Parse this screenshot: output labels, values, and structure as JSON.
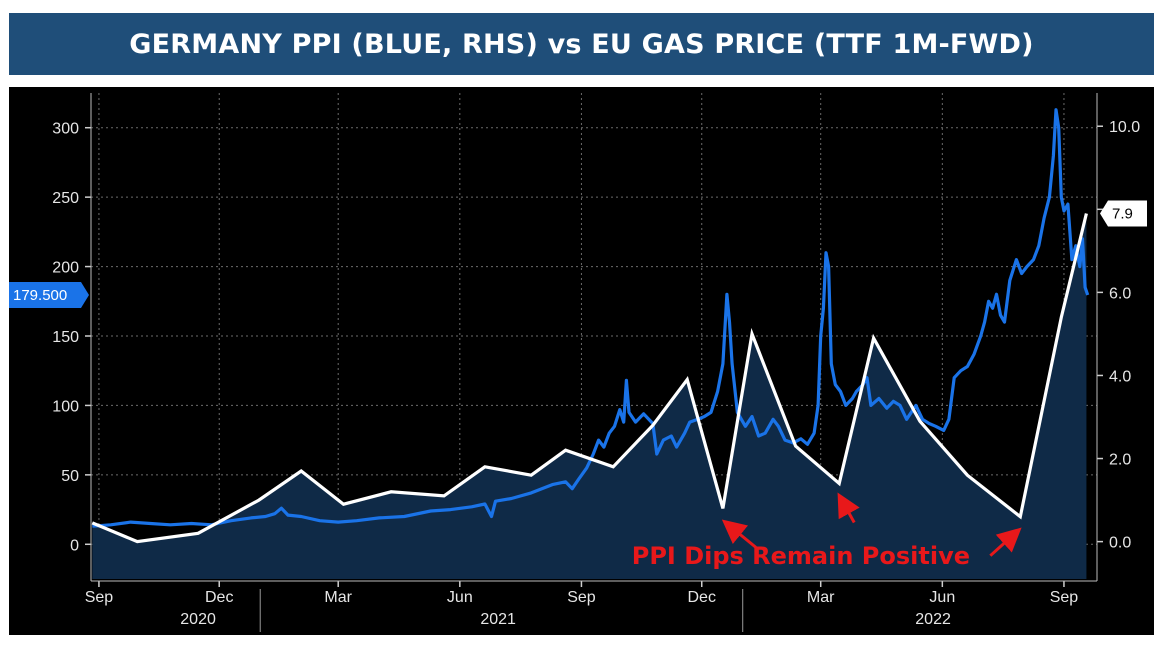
{
  "title": "GERMANY PPI (BLUE, RHS) vs EU GAS PRICE (TTF 1M-FWD)",
  "chart_data": {
    "type": "line",
    "title": "GERMANY PPI (BLUE, RHS) vs EU GAS PRICE (TTF 1M-FWD)",
    "x_axis": {
      "range": [
        "2020-08-26",
        "2022-09-26"
      ],
      "tick_labels": [
        {
          "label": "Sep",
          "date": "2020-09-01"
        },
        {
          "label": "Dec",
          "date": "2020-12-01"
        },
        {
          "label": "Mar",
          "date": "2021-03-01"
        },
        {
          "label": "Jun",
          "date": "2021-06-01"
        },
        {
          "label": "Sep",
          "date": "2021-09-01"
        },
        {
          "label": "Dec",
          "date": "2021-12-01"
        },
        {
          "label": "Mar",
          "date": "2022-03-01"
        },
        {
          "label": "Jun",
          "date": "2022-06-01"
        },
        {
          "label": "Sep",
          "date": "2022-09-01"
        }
      ],
      "year_labels": [
        {
          "label": "2020",
          "date": "2020-11-15"
        },
        {
          "label": "2021",
          "date": "2021-06-30"
        },
        {
          "label": "2022",
          "date": "2022-05-25"
        }
      ],
      "year_separators": [
        "2021-01-01",
        "2022-01-01"
      ]
    },
    "y_left": {
      "range": [
        -25,
        325
      ],
      "ticks": [
        0,
        50,
        100,
        150,
        200,
        250,
        300
      ],
      "tick_labels": [
        "0",
        "50",
        "100",
        "150",
        "200",
        "250",
        "300"
      ],
      "last_value_label": "179.500",
      "last_value": 179.5
    },
    "y_right": {
      "range": [
        -0.9,
        10.8
      ],
      "ticks": [
        0,
        2,
        4,
        6,
        8,
        10
      ],
      "tick_labels": [
        "0.0",
        "2.0",
        "4.0",
        "6.0",
        "",
        "10.0"
      ],
      "last_value_label": "7.9",
      "last_value": 7.9
    },
    "series": [
      {
        "name": "EU Gas Price (TTF 1M-Fwd)",
        "axis": "left",
        "color": "#1a73e8",
        "points": [
          [
            "2020-08-27",
            13
          ],
          [
            "2020-09-10",
            14
          ],
          [
            "2020-09-25",
            16
          ],
          [
            "2020-10-10",
            15
          ],
          [
            "2020-10-25",
            14
          ],
          [
            "2020-11-10",
            15
          ],
          [
            "2020-11-25",
            14
          ],
          [
            "2020-12-10",
            17
          ],
          [
            "2020-12-25",
            19
          ],
          [
            "2021-01-05",
            20
          ],
          [
            "2021-01-12",
            22
          ],
          [
            "2021-01-17",
            26
          ],
          [
            "2021-01-22",
            21
          ],
          [
            "2021-02-01",
            20
          ],
          [
            "2021-02-15",
            17
          ],
          [
            "2021-03-01",
            16
          ],
          [
            "2021-03-15",
            17
          ],
          [
            "2021-04-01",
            19
          ],
          [
            "2021-04-20",
            20
          ],
          [
            "2021-05-10",
            24
          ],
          [
            "2021-05-25",
            25
          ],
          [
            "2021-06-10",
            27
          ],
          [
            "2021-06-20",
            29
          ],
          [
            "2021-06-25",
            20
          ],
          [
            "2021-06-28",
            31
          ],
          [
            "2021-07-10",
            33
          ],
          [
            "2021-07-25",
            37
          ],
          [
            "2021-08-10",
            43
          ],
          [
            "2021-08-20",
            45
          ],
          [
            "2021-08-25",
            40
          ],
          [
            "2021-08-30",
            47
          ],
          [
            "2021-09-05",
            55
          ],
          [
            "2021-09-10",
            65
          ],
          [
            "2021-09-14",
            75
          ],
          [
            "2021-09-18",
            70
          ],
          [
            "2021-09-22",
            80
          ],
          [
            "2021-09-26",
            85
          ],
          [
            "2021-09-30",
            97
          ],
          [
            "2021-10-03",
            88
          ],
          [
            "2021-10-05",
            118
          ],
          [
            "2021-10-07",
            95
          ],
          [
            "2021-10-12",
            88
          ],
          [
            "2021-10-18",
            94
          ],
          [
            "2021-10-25",
            87
          ],
          [
            "2021-10-28",
            65
          ],
          [
            "2021-11-02",
            75
          ],
          [
            "2021-11-08",
            78
          ],
          [
            "2021-11-12",
            70
          ],
          [
            "2021-11-18",
            80
          ],
          [
            "2021-11-22",
            88
          ],
          [
            "2021-11-28",
            90
          ],
          [
            "2021-12-03",
            92
          ],
          [
            "2021-12-08",
            95
          ],
          [
            "2021-12-13",
            110
          ],
          [
            "2021-12-17",
            130
          ],
          [
            "2021-12-20",
            180
          ],
          [
            "2021-12-22",
            160
          ],
          [
            "2021-12-24",
            130
          ],
          [
            "2021-12-28",
            95
          ],
          [
            "2022-01-03",
            85
          ],
          [
            "2022-01-08",
            92
          ],
          [
            "2022-01-13",
            78
          ],
          [
            "2022-01-18",
            80
          ],
          [
            "2022-01-24",
            90
          ],
          [
            "2022-01-28",
            85
          ],
          [
            "2022-02-02",
            75
          ],
          [
            "2022-02-08",
            73
          ],
          [
            "2022-02-14",
            76
          ],
          [
            "2022-02-19",
            72
          ],
          [
            "2022-02-24",
            80
          ],
          [
            "2022-02-27",
            100
          ],
          [
            "2022-03-01",
            150
          ],
          [
            "2022-03-03",
            170
          ],
          [
            "2022-03-05",
            210
          ],
          [
            "2022-03-07",
            200
          ],
          [
            "2022-03-09",
            130
          ],
          [
            "2022-03-12",
            115
          ],
          [
            "2022-03-16",
            110
          ],
          [
            "2022-03-20",
            100
          ],
          [
            "2022-03-25",
            105
          ],
          [
            "2022-03-28",
            110
          ],
          [
            "2022-04-02",
            115
          ],
          [
            "2022-04-05",
            120
          ],
          [
            "2022-04-08",
            100
          ],
          [
            "2022-04-14",
            105
          ],
          [
            "2022-04-20",
            98
          ],
          [
            "2022-04-25",
            103
          ],
          [
            "2022-04-30",
            100
          ],
          [
            "2022-05-05",
            90
          ],
          [
            "2022-05-12",
            100
          ],
          [
            "2022-05-17",
            90
          ],
          [
            "2022-05-22",
            87
          ],
          [
            "2022-05-27",
            85
          ],
          [
            "2022-06-02",
            82
          ],
          [
            "2022-06-06",
            90
          ],
          [
            "2022-06-10",
            120
          ],
          [
            "2022-06-15",
            125
          ],
          [
            "2022-06-20",
            128
          ],
          [
            "2022-06-25",
            137
          ],
          [
            "2022-06-30",
            150
          ],
          [
            "2022-07-03",
            160
          ],
          [
            "2022-07-06",
            175
          ],
          [
            "2022-07-09",
            170
          ],
          [
            "2022-07-12",
            180
          ],
          [
            "2022-07-15",
            165
          ],
          [
            "2022-07-18",
            160
          ],
          [
            "2022-07-22",
            190
          ],
          [
            "2022-07-27",
            205
          ],
          [
            "2022-07-31",
            195
          ],
          [
            "2022-08-04",
            200
          ],
          [
            "2022-08-09",
            205
          ],
          [
            "2022-08-13",
            215
          ],
          [
            "2022-08-17",
            235
          ],
          [
            "2022-08-21",
            250
          ],
          [
            "2022-08-24",
            280
          ],
          [
            "2022-08-26",
            313
          ],
          [
            "2022-08-28",
            300
          ],
          [
            "2022-08-30",
            250
          ],
          [
            "2022-09-01",
            240
          ],
          [
            "2022-09-04",
            245
          ],
          [
            "2022-09-07",
            205
          ],
          [
            "2022-09-10",
            215
          ],
          [
            "2022-09-13",
            200
          ],
          [
            "2022-09-15",
            220
          ],
          [
            "2022-09-17",
            185
          ],
          [
            "2022-09-19",
            179.5
          ]
        ]
      },
      {
        "name": "Germany PPI",
        "axis": "right",
        "color": "#ffffff",
        "points": [
          [
            "2020-08-27",
            0.45
          ],
          [
            "2020-09-30",
            0.0
          ],
          [
            "2020-11-15",
            0.2
          ],
          [
            "2020-12-31",
            1.0
          ],
          [
            "2021-02-01",
            1.7
          ],
          [
            "2021-03-05",
            0.9
          ],
          [
            "2021-04-10",
            1.2
          ],
          [
            "2021-05-20",
            1.1
          ],
          [
            "2021-06-20",
            1.8
          ],
          [
            "2021-07-25",
            1.6
          ],
          [
            "2021-08-20",
            2.2
          ],
          [
            "2021-09-25",
            1.8
          ],
          [
            "2021-10-25",
            2.8
          ],
          [
            "2021-11-20",
            3.9
          ],
          [
            "2021-12-17",
            0.8
          ],
          [
            "2022-01-08",
            5.0
          ],
          [
            "2022-02-10",
            2.3
          ],
          [
            "2022-03-15",
            1.4
          ],
          [
            "2022-04-10",
            4.9
          ],
          [
            "2022-05-15",
            2.9
          ],
          [
            "2022-06-20",
            1.6
          ],
          [
            "2022-07-30",
            0.6
          ],
          [
            "2022-08-30",
            5.4
          ],
          [
            "2022-09-18",
            7.9
          ]
        ]
      }
    ],
    "annotation": {
      "text": "PPI Dips Remain Positive",
      "arrows_point_to": [
        "2021-12-17",
        "2022-03-15",
        "2022-07-30"
      ]
    },
    "colors": {
      "background": "#000000",
      "grid": "#6b6b6b",
      "fill": "#0f2a47",
      "annotation": "#e8181a",
      "left_tag": "#1a73e8",
      "right_tag": "#ffffff"
    }
  }
}
